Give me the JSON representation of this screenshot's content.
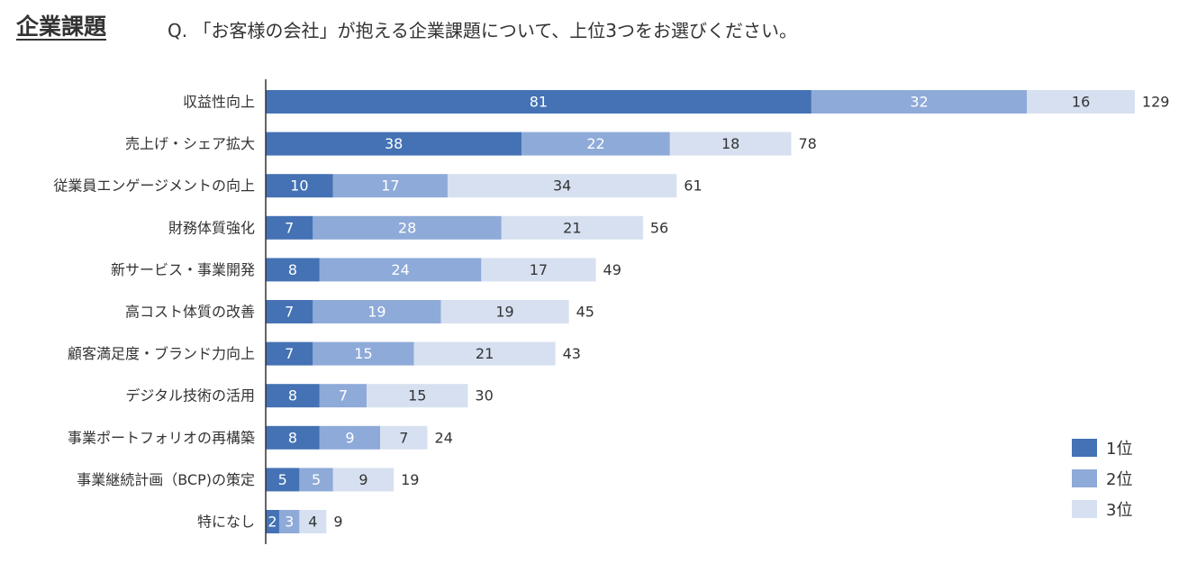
{
  "header": {
    "title": "企業課題",
    "question": "Q. 「お客様の会社」が抱える企業課題について、上位3つをお選びください。"
  },
  "colors": {
    "rank1": "#4472b4",
    "rank2": "#8eaad8",
    "rank3": "#d6e0f0",
    "text": "#333333"
  },
  "chart_data": {
    "type": "bar",
    "orientation": "horizontal",
    "stacked": true,
    "categories": [
      "収益性向上",
      "売上げ・シェア拡大",
      "従業員エンゲージメントの向上",
      "財務体質強化",
      "新サービス・事業開発",
      "高コスト体質の改善",
      "顧客満足度・ブランド力向上",
      "デジタル技術の活用",
      "事業ポートフォリオの再構築",
      "事業継続計画（BCP)の策定",
      "特になし"
    ],
    "series": [
      {
        "name": "1位",
        "values": [
          81,
          38,
          10,
          7,
          8,
          7,
          7,
          8,
          8,
          5,
          2
        ]
      },
      {
        "name": "2位",
        "values": [
          32,
          22,
          17,
          28,
          24,
          19,
          15,
          7,
          9,
          5,
          3
        ]
      },
      {
        "name": "3位",
        "values": [
          16,
          18,
          34,
          21,
          17,
          19,
          21,
          15,
          7,
          9,
          4
        ]
      }
    ],
    "totals": [
      129,
      78,
      61,
      56,
      49,
      45,
      43,
      30,
      24,
      19,
      9
    ],
    "legend_position": "bottom-right",
    "grid": false
  }
}
